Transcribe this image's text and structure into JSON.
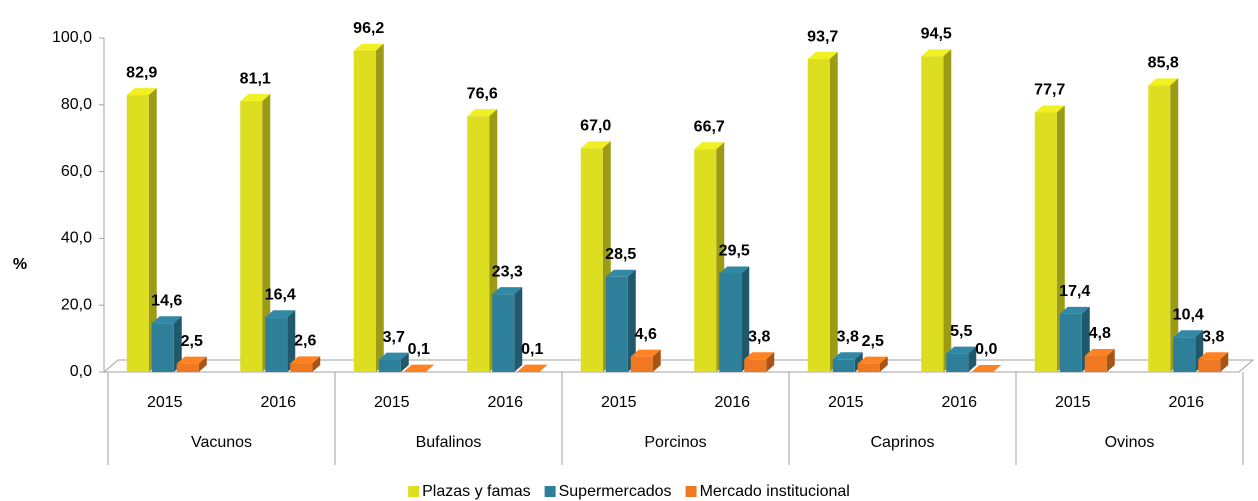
{
  "chart_data": {
    "type": "bar3d",
    "y_label": "%",
    "categories": [
      "2015",
      "2016",
      "2015",
      "2016",
      "2015",
      "2016",
      "2015",
      "2016",
      "2015",
      "2016"
    ],
    "groups": [
      "Vacunos",
      "Bufalinos",
      "Porcinos",
      "Caprinos",
      "Ovinos"
    ],
    "series": [
      {
        "name": "Plazas y famas",
        "color": "#dede20",
        "values": [
          82.9,
          81.1,
          96.2,
          76.6,
          67.0,
          66.7,
          93.7,
          94.5,
          77.7,
          85.8
        ],
        "value_labels": [
          "82,9",
          "81,1",
          "96,2",
          "76,6",
          "67,0",
          "66,7",
          "93,7",
          "94,5",
          "77,7",
          "85,8"
        ]
      },
      {
        "name": "Supermercados",
        "color": "#2e7f99",
        "values": [
          14.6,
          16.4,
          3.7,
          23.3,
          28.5,
          29.5,
          3.8,
          5.5,
          17.4,
          10.4
        ],
        "value_labels": [
          "14,6",
          "16,4",
          "3,7",
          "23,3",
          "28,5",
          "29,5",
          "3,8",
          "5,5",
          "17,4",
          "10,4"
        ]
      },
      {
        "name": "Mercado institucional",
        "color": "#f07820",
        "values": [
          2.5,
          2.6,
          0.1,
          0.1,
          4.6,
          3.8,
          2.5,
          0.0,
          4.8,
          3.8
        ],
        "value_labels": [
          "2,5",
          "2,6",
          "0,1",
          "0,1",
          "4,6",
          "3,8",
          "2,5",
          "0,0",
          "4,8",
          "3,8"
        ]
      }
    ],
    "ylim": [
      0,
      100
    ],
    "yticks": [
      {
        "value": 0,
        "label": "0,0"
      },
      {
        "value": 20,
        "label": "20,0"
      },
      {
        "value": 40,
        "label": "40,0"
      },
      {
        "value": 60,
        "label": "60,0"
      },
      {
        "value": 80,
        "label": "80,0"
      },
      {
        "value": 100,
        "label": "100,0"
      }
    ],
    "legend": "bottom"
  }
}
